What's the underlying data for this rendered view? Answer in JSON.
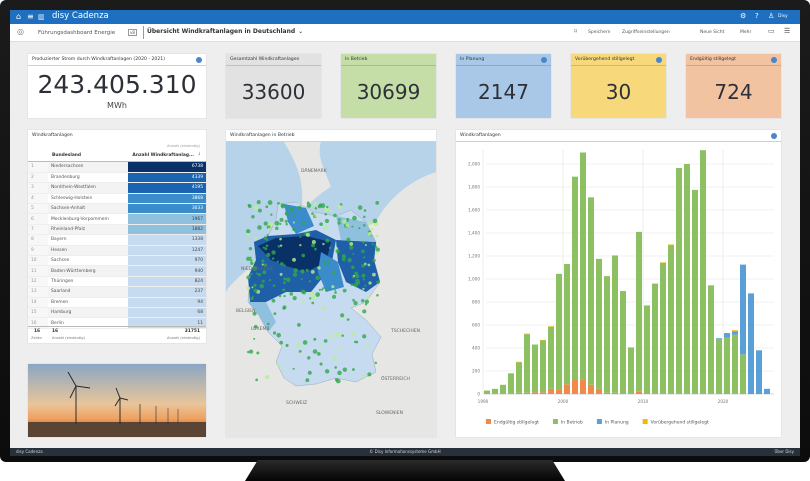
{
  "app": {
    "name": "disy Cadenza",
    "user": "Disy"
  },
  "toolbar": {
    "breadcrumb": "Führungsdashboard Energie",
    "version": "v8",
    "view_title": "Übersicht Windkraftanlagen in Deutschland",
    "actions": [
      "Speichern",
      "Zugriffseinstellungen",
      "Neue Sicht",
      "Mehr"
    ]
  },
  "kpis": {
    "energy": {
      "title": "Produzierter Strom durch Windkraftanlagen (2020 - 2021)",
      "value": "243.405.310",
      "unit": "MWh"
    },
    "cards": [
      {
        "title": "Gesamtzahl Windkraftanlagen",
        "value": "33600",
        "color": "#e2e2e2"
      },
      {
        "title": "In Betrieb",
        "value": "30699",
        "color": "#c5dea8"
      },
      {
        "title": "In Planung",
        "value": "2147",
        "color": "#a9c7e6"
      },
      {
        "title": "Vorübergehend stillgelegt",
        "value": "30",
        "color": "#f7d97c"
      },
      {
        "title": "Endgültig stillgelegt",
        "value": "724",
        "color": "#f2c3a0"
      }
    ]
  },
  "table": {
    "title": "Windkraftanlagen",
    "col_state": "Bundesland",
    "col_count_super": "Anzahl (eindeutig)",
    "col_count": "Anzahl Windkraftanlag...",
    "rows": [
      [
        "1",
        "Niedersachsen",
        "6738"
      ],
      [
        "2",
        "Brandenburg",
        "4339"
      ],
      [
        "3",
        "Nordrhein-Westfalen",
        "4195"
      ],
      [
        "4",
        "Schleswig-Holstein",
        "3868"
      ],
      [
        "5",
        "Sachsen-Anhalt",
        "3033"
      ],
      [
        "6",
        "Mecklenburg-Vorpommern",
        "1967"
      ],
      [
        "7",
        "Rheinland-Pfalz",
        "1882"
      ],
      [
        "8",
        "Bayern",
        "1338"
      ],
      [
        "9",
        "Hessen",
        "1247"
      ],
      [
        "10",
        "Sachsen",
        "970"
      ],
      [
        "11",
        "Baden-Württemberg",
        "940"
      ],
      [
        "12",
        "Thüringen",
        "824"
      ],
      [
        "13",
        "Saarland",
        "237"
      ],
      [
        "14",
        "Bremen",
        "94"
      ],
      [
        "15",
        "Hamburg",
        "68"
      ],
      [
        "16",
        "Berlin",
        "11"
      ]
    ],
    "footer": {
      "rows": "16",
      "rows_label": "Zeilen",
      "count_states": "16",
      "count_states_label": "Anzahl (eindeutig)",
      "total": "31751",
      "total_label": "Anzahl (eindeutig)"
    }
  },
  "map": {
    "title": "Windkraftanlagen in Betrieb",
    "labels": [
      "DÄNEMARK",
      "NIEDERLANDE",
      "BELGIEN",
      "LUXEMB.",
      "TSCHECHIEN",
      "SCHWEIZ",
      "ÖSTERREICH",
      "SLOWENIEN"
    ]
  },
  "chart_data": {
    "type": "bar",
    "stacked": true,
    "title": "Windkraftanlagen",
    "xlabel": "",
    "ylabel": "",
    "x": [
      1990,
      1991,
      1992,
      1993,
      1994,
      1995,
      1996,
      1997,
      1998,
      1999,
      2000,
      2001,
      2002,
      2003,
      2004,
      2005,
      2006,
      2007,
      2008,
      2009,
      2010,
      2011,
      2012,
      2013,
      2014,
      2015,
      2016,
      2017,
      2018,
      2019,
      2020,
      2021,
      2022,
      2023,
      2024,
      2025
    ],
    "xticks": [
      "1990",
      "2000",
      "2010",
      "2020"
    ],
    "yticks": [
      "0",
      "200",
      "400",
      "600",
      "800",
      "1,000",
      "1,200",
      "1,400",
      "1,600",
      "1,800",
      "2,000"
    ],
    "ylim": [
      0,
      2150
    ],
    "grid": true,
    "legend": "bottom",
    "series": [
      {
        "name": "Endgültig stillgelegt",
        "color": "#f0894a",
        "values": [
          0,
          0,
          0,
          5,
          10,
          10,
          15,
          15,
          45,
          40,
          85,
          130,
          125,
          80,
          45,
          10,
          10,
          5,
          5,
          20,
          5,
          5,
          5,
          5,
          5,
          5,
          5,
          5,
          5,
          0,
          0,
          5,
          0,
          0,
          0,
          0
        ]
      },
      {
        "name": "In Betrieb",
        "color": "#8cc063",
        "values": [
          30,
          45,
          80,
          175,
          265,
          510,
          415,
          450,
          540,
          1005,
          1045,
          1760,
          1975,
          1630,
          1130,
          1015,
          1195,
          890,
          400,
          1390,
          765,
          955,
          1135,
          1290,
          1960,
          1995,
          1770,
          2115,
          940,
          475,
          490,
          510,
          345,
          0,
          0,
          0
        ]
      },
      {
        "name": "In Planung",
        "color": "#5b9fd8",
        "values": [
          0,
          0,
          0,
          0,
          0,
          0,
          0,
          0,
          0,
          0,
          0,
          0,
          0,
          0,
          0,
          0,
          0,
          0,
          0,
          0,
          0,
          0,
          0,
          0,
          0,
          0,
          0,
          0,
          0,
          10,
          40,
          30,
          780,
          875,
          380,
          45
        ]
      },
      {
        "name": "Vorübergehend stillgelegt",
        "color": "#f5b800",
        "values": [
          0,
          0,
          0,
          0,
          5,
          5,
          0,
          5,
          5,
          0,
          0,
          0,
          0,
          0,
          0,
          0,
          0,
          0,
          0,
          0,
          0,
          0,
          5,
          5,
          0,
          0,
          0,
          0,
          0,
          0,
          0,
          10,
          0,
          0,
          0,
          0
        ]
      }
    ]
  },
  "footer": {
    "left": "disy Cadenza",
    "center": "© Disy Informationssysteme GmbH",
    "right": "Über Disy"
  }
}
